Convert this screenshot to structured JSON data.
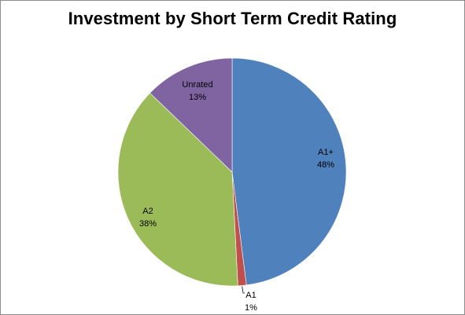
{
  "chart_data": {
    "type": "pie",
    "title": "Investment by Short Term Credit Rating",
    "slices": [
      {
        "label": "A1+",
        "percent_label": "48%",
        "value": 48,
        "color": "#4f81bd"
      },
      {
        "label": "A1",
        "percent_label": "1%",
        "value": 1.2,
        "color": "#c0504d"
      },
      {
        "label": "A2",
        "percent_label": "38%",
        "value": 38,
        "color": "#9bbb59"
      },
      {
        "label": "Unrated",
        "percent_label": "13%",
        "value": 12.8,
        "color": "#8064a2"
      }
    ],
    "start_angle": "12 o'clock",
    "direction": "clockwise",
    "legend": "none"
  }
}
